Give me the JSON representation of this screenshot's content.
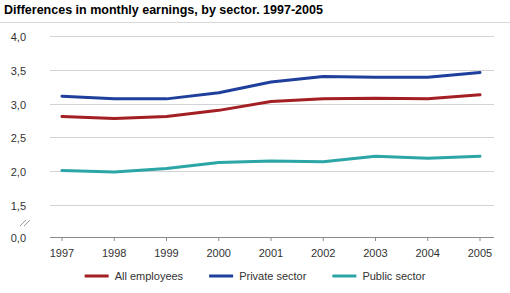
{
  "chart_data": {
    "type": "line",
    "title": "Differences in monthly earnings, by sector. 1997-2005",
    "categories": [
      "1997",
      "1998",
      "1999",
      "2000",
      "2001",
      "2002",
      "2003",
      "2004",
      "2005"
    ],
    "series": [
      {
        "name": "All employees",
        "color": "#a31f24",
        "values": [
          2.81,
          2.78,
          2.81,
          2.9,
          3.03,
          3.07,
          3.08,
          3.07,
          3.13
        ]
      },
      {
        "name": "Private sector",
        "color": "#1f3f9c",
        "values": [
          3.11,
          3.07,
          3.07,
          3.16,
          3.32,
          3.4,
          3.39,
          3.39,
          3.46
        ]
      },
      {
        "name": "Public sector",
        "color": "#2ba5a5",
        "values": [
          2.01,
          1.99,
          2.04,
          2.13,
          2.15,
          2.14,
          2.22,
          2.19,
          2.22
        ]
      }
    ],
    "ylim": [
      0,
      4
    ],
    "yticks": [
      {
        "value": 0,
        "label": "0,0"
      },
      {
        "value": 1.5,
        "label": "1,5"
      },
      {
        "value": 2,
        "label": "2,0"
      },
      {
        "value": 2.5,
        "label": "2,5"
      },
      {
        "value": 3,
        "label": "3,0"
      },
      {
        "value": 3.5,
        "label": "3,5"
      },
      {
        "value": 4,
        "label": "4,0"
      }
    ],
    "grid": true,
    "legend": "bottom"
  }
}
